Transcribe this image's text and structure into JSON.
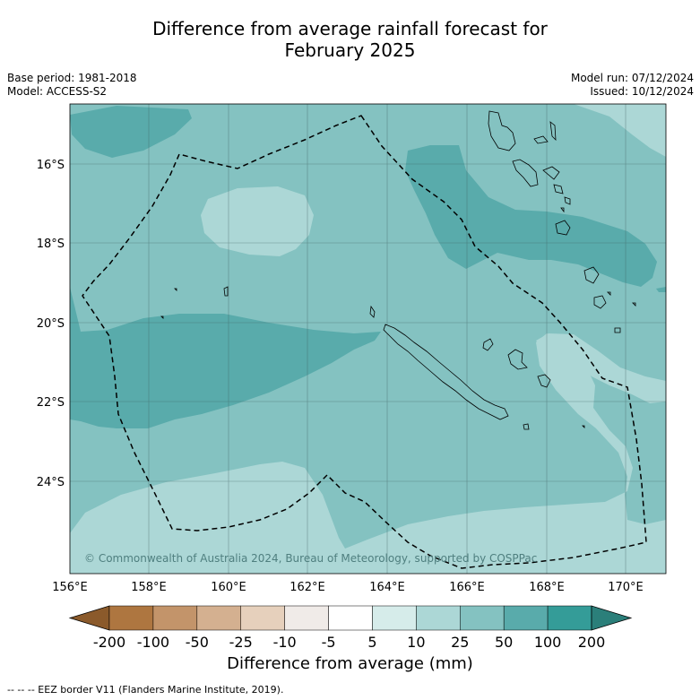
{
  "title_line1": "Difference from average rainfall forecast for",
  "title_line2": "February 2025",
  "base_period": "Base period: 1981-2018",
  "model": "Model: ACCESS-S2",
  "model_run": "Model run: 07/12/2024",
  "issued": "Issued: 10/12/2024",
  "copyright": "© Commonwealth of Australia 2024, Bureau of Meteorology, supported by COSPPac",
  "lat_labels": [
    "16°S",
    "18°S",
    "20°S",
    "22°S",
    "24°S"
  ],
  "lon_labels": [
    "156°E",
    "158°E",
    "160°E",
    "162°E",
    "164°E",
    "166°E",
    "168°E",
    "170°E"
  ],
  "colorbar": {
    "title": "Difference from average (mm)",
    "tick_labels": [
      "-200",
      "-100",
      "-50",
      "-25",
      "-10",
      "-5",
      "5",
      "10",
      "25",
      "50",
      "100",
      "200"
    ],
    "colors": [
      "#8b5a2b",
      "#ae7640",
      "#c3946a",
      "#d4b090",
      "#e6d0bc",
      "#f0ebe8",
      "#ffffff",
      "#d6ecea",
      "#acd7d6",
      "#84c2c1",
      "#59abab",
      "#349c98",
      "#2b7f7a"
    ]
  },
  "footnote": "--  --  -- EEZ border V11 (Flanders Marine Institute, 2019)."
}
